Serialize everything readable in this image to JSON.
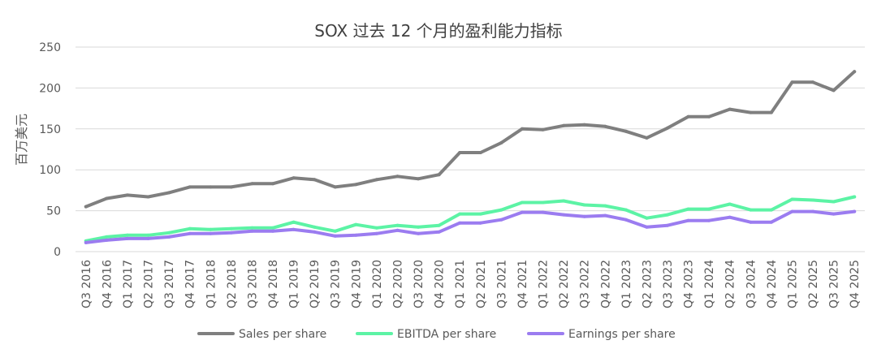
{
  "chart_data": {
    "type": "line",
    "title": "SOX 过去 12 个月的盈利能力指标",
    "xlabel": "",
    "ylabel": "百万美元",
    "ylim": [
      0,
      250
    ],
    "yticks": [
      0,
      50,
      100,
      150,
      200,
      250
    ],
    "grid": true,
    "legend_position": "bottom",
    "categories": [
      "Q3 2016",
      "Q4 2016",
      "Q1 2017",
      "Q2 2017",
      "Q3 2017",
      "Q4 2017",
      "Q1 2018",
      "Q2 2018",
      "Q3 2018",
      "Q4 2018",
      "Q1 2019",
      "Q2 2019",
      "Q3 2019",
      "Q4 2019",
      "Q1 2020",
      "Q2 2020",
      "Q3 2020",
      "Q4 2020",
      "Q1 2021",
      "Q2 2021",
      "Q3 2021",
      "Q4 2021",
      "Q1 2022",
      "Q2 2022",
      "Q3 2022",
      "Q4 2022",
      "Q1 2023",
      "Q2 2023",
      "Q3 2023",
      "Q4 2023",
      "Q1 2024",
      "Q2 2024",
      "Q3 2024",
      "Q4 2024",
      "Q1 2025",
      "Q2 2025",
      "Q3 2025",
      "Q4 2025"
    ],
    "series": [
      {
        "name": "Sales per share",
        "color": "#7f7f7f",
        "values": [
          55,
          65,
          69,
          67,
          72,
          79,
          79,
          79,
          83,
          83,
          90,
          88,
          79,
          82,
          88,
          92,
          89,
          94,
          121,
          121,
          133,
          150,
          149,
          154,
          155,
          153,
          147,
          139,
          151,
          165,
          165,
          174,
          170,
          170,
          207,
          207,
          197,
          220
        ]
      },
      {
        "name": "EBITDA per share",
        "color": "#5cf3a5",
        "values": [
          13,
          18,
          20,
          20,
          23,
          28,
          27,
          28,
          29,
          29,
          36,
          30,
          25,
          33,
          29,
          32,
          30,
          32,
          46,
          46,
          51,
          60,
          60,
          62,
          57,
          56,
          51,
          41,
          45,
          52,
          52,
          58,
          51,
          51,
          64,
          63,
          61,
          67
        ]
      },
      {
        "name": "Earnings per share",
        "color": "#9b7cf0",
        "values": [
          11,
          14,
          16,
          16,
          18,
          22,
          22,
          23,
          25,
          25,
          27,
          24,
          19,
          20,
          22,
          26,
          22,
          24,
          35,
          35,
          39,
          48,
          48,
          45,
          43,
          44,
          39,
          30,
          32,
          38,
          38,
          42,
          36,
          36,
          49,
          49,
          46,
          49
        ]
      }
    ]
  }
}
